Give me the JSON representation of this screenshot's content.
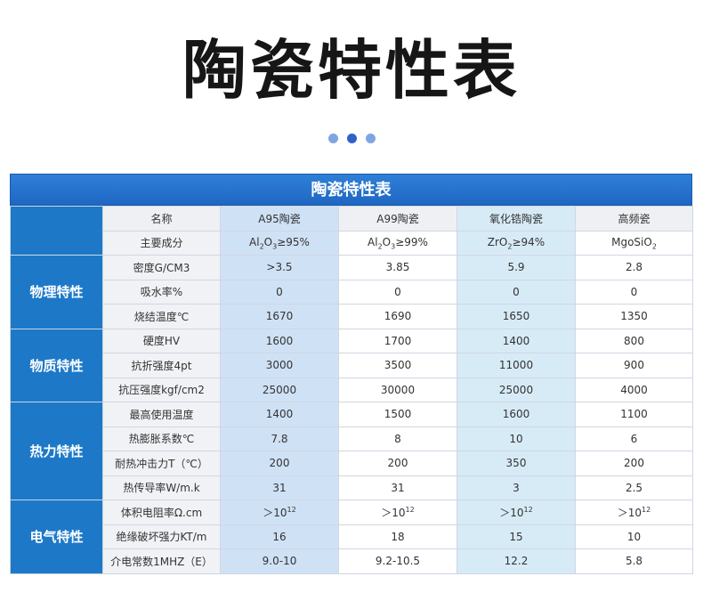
{
  "page_title": "陶瓷特性表",
  "table_title": "陶瓷特性表",
  "header": {
    "label": "名称",
    "columns": [
      "A95陶瓷",
      "A99陶瓷",
      "氧化锆陶瓷",
      "高频瓷"
    ]
  },
  "composition": {
    "label": "主要成分",
    "values": [
      {
        "pre": "Al",
        "s1": "2",
        "mid": "O",
        "s2": "3",
        "post": "≥95%"
      },
      {
        "pre": "Al",
        "s1": "2",
        "mid": "O",
        "s2": "3",
        "post": "≥99%"
      },
      {
        "pre": "ZrO",
        "s1": "2",
        "mid": "",
        "s2": "",
        "post": "≥94%"
      },
      {
        "pre": "MgoSiO",
        "s1": "2",
        "mid": "",
        "s2": "",
        "post": ""
      }
    ]
  },
  "categories": [
    {
      "name": "物理特性",
      "rows": [
        {
          "label": "密度G/CM3",
          "values": [
            ">3.5",
            "3.85",
            "5.9",
            "2.8"
          ]
        },
        {
          "label": "吸水率%",
          "values": [
            "0",
            "0",
            "0",
            "0"
          ]
        },
        {
          "label": "烧结温度℃",
          "values": [
            "1670",
            "1690",
            "1650",
            "1350"
          ]
        }
      ]
    },
    {
      "name": "物质特性",
      "rows": [
        {
          "label": "硬度HV",
          "values": [
            "1600",
            "1700",
            "1400",
            "800"
          ]
        },
        {
          "label": "抗折强度4pt",
          "values": [
            "3000",
            "3500",
            "11000",
            "900"
          ]
        },
        {
          "label": "抗压强度kgf/cm2",
          "values": [
            "25000",
            "30000",
            "25000",
            "4000"
          ]
        }
      ]
    },
    {
      "name": "热力特性",
      "rows": [
        {
          "label": "最高使用温度",
          "values": [
            "1400",
            "1500",
            "1600",
            "1100"
          ]
        },
        {
          "label": "热膨胀系数℃",
          "values": [
            "7.8",
            "8",
            "10",
            "6"
          ]
        },
        {
          "label": "耐热冲击力T（℃）",
          "values": [
            "200",
            "200",
            "350",
            "200"
          ]
        },
        {
          "label": "热传导率W/m.k",
          "values": [
            "31",
            "31",
            "3",
            "2.5"
          ]
        }
      ]
    },
    {
      "name": "电气特性",
      "resistivity": {
        "label": "体积电阻率Ω.cm",
        "base": "＞10",
        "exp": "12"
      },
      "rows": [
        {
          "label": "绝缘破坏强力KT/m",
          "values": [
            "16",
            "18",
            "15",
            "10"
          ]
        },
        {
          "label": "介电常数1MHZ（E）",
          "values": [
            "9.0-10",
            "9.2-10.5",
            "12.2",
            "5.8"
          ]
        }
      ]
    }
  ]
}
